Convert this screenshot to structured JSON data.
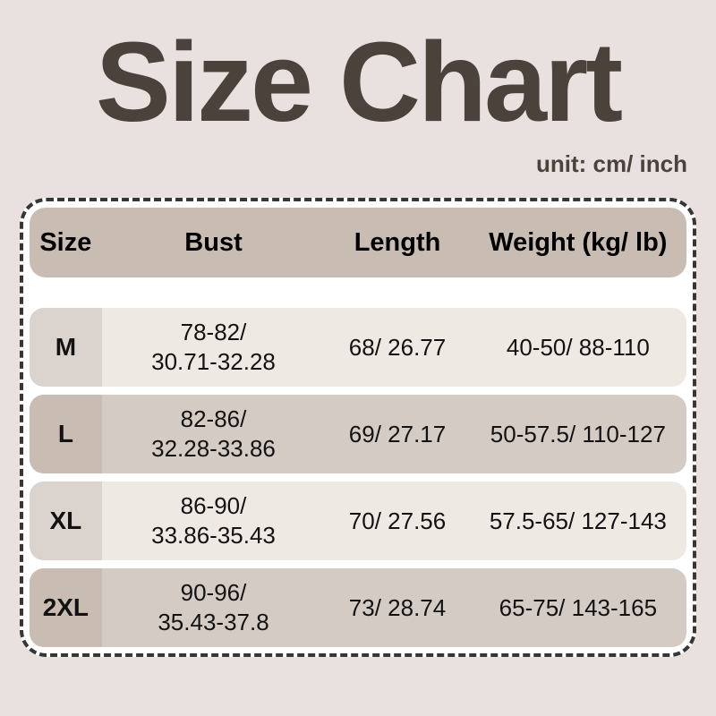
{
  "page": {
    "title": "Size Chart",
    "unit_label": "unit: cm/ inch"
  },
  "colors": {
    "page_background": "#e8e1e0",
    "title_text": "#4a423b",
    "table_border": "#363636",
    "table_interior": "#ffffff",
    "header_background": "#c9bdb3",
    "row_light_background": "#eee9e3",
    "row_light_size_cell": "#dad3ce",
    "row_dark_background": "#d4cbc5",
    "row_dark_size_cell": "#c9bcb3",
    "cell_text": "#121212"
  },
  "table": {
    "headers": [
      "Size",
      "Bust",
      "Length",
      "Weight (kg/ lb)"
    ],
    "rows": [
      {
        "size": "M",
        "bust": "78-82/\n30.71-32.28",
        "length": "68/ 26.77",
        "weight": "40-50/ 88-110"
      },
      {
        "size": "L",
        "bust": "82-86/\n32.28-33.86",
        "length": "69/ 27.17",
        "weight": "50-57.5/ 110-127"
      },
      {
        "size": "XL",
        "bust": "86-90/\n33.86-35.43",
        "length": "70/ 27.56",
        "weight": "57.5-65/ 127-143"
      },
      {
        "size": "2XL",
        "bust": "90-96/\n35.43-37.8",
        "length": "73/ 28.74",
        "weight": "65-75/ 143-165"
      }
    ]
  }
}
